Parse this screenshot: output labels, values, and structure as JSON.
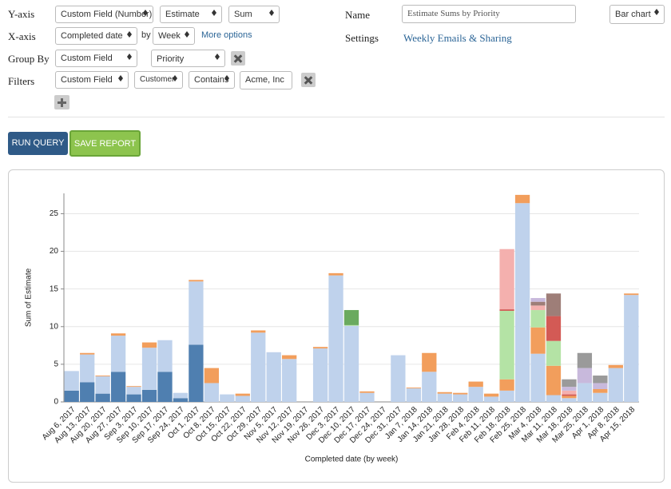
{
  "form": {
    "y_axis": {
      "label": "Y-axis",
      "field": "Custom Field (Number)",
      "measure": "Estimate",
      "aggregate": "Sum"
    },
    "x_axis": {
      "label": "X-axis",
      "field": "Completed date",
      "by": "by",
      "interval": "Week",
      "more": "More options"
    },
    "group_by": {
      "label": "Group By",
      "field": "Custom Field",
      "value": "Priority"
    },
    "filters": {
      "label": "Filters",
      "field": "Custom Field",
      "subfield": "Customer",
      "operator": "Contains",
      "value": "Acme, Inc"
    },
    "name": {
      "label": "Name",
      "value": "Estimate Sums by Priority"
    },
    "chart_type": "Bar chart",
    "settings": {
      "label": "Settings",
      "link": "Weekly Emails & Sharing"
    }
  },
  "buttons": {
    "run": "RUN QUERY",
    "save": "SAVE REPORT"
  },
  "chart_data": {
    "type": "stacked_bar",
    "xlabel": "Completed date (by week)",
    "ylabel": "Sum of Estimate",
    "categories": [
      "Aug 6, 2017",
      "Aug 13, 2017",
      "Aug 20, 2017",
      "Aug 27, 2017",
      "Sep 3, 2017",
      "Sep 10, 2017",
      "Sep 17, 2017",
      "Sep 24, 2017",
      "Oct 1, 2017",
      "Oct 8, 2017",
      "Oct 15, 2017",
      "Oct 22, 2017",
      "Oct 29, 2017",
      "Nov 5, 2017",
      "Nov 12, 2017",
      "Nov 19, 2017",
      "Nov 26, 2017",
      "Dec 3, 2017",
      "Dec 10, 2017",
      "Dec 17, 2017",
      "Dec 24, 2017",
      "Dec 31, 2017",
      "Jan 7, 2018",
      "Jan 14, 2018",
      "Jan 21, 2018",
      "Jan 28, 2018",
      "Feb 4, 2018",
      "Feb 11, 2018",
      "Feb 18, 2018",
      "Feb 25, 2018",
      "Mar 4, 2018",
      "Mar 11, 2018",
      "Mar 18, 2018",
      "Mar 25, 2018",
      "Apr 1, 2018",
      "Apr 8, 2018",
      "Apr 15, 2018"
    ],
    "series": [
      {
        "color": "#4f7fb0",
        "values": [
          1.5,
          2.6,
          1.1,
          4.0,
          1.0,
          1.6,
          4.0,
          0.5,
          7.6,
          0,
          0,
          0,
          0,
          0,
          0,
          0,
          0,
          0,
          0,
          0,
          0,
          0,
          0,
          0,
          0,
          0,
          0,
          0,
          0,
          0,
          0,
          0,
          0,
          0,
          0,
          0,
          0
        ]
      },
      {
        "color": "#bfd2ec",
        "values": [
          2.6,
          3.7,
          2.3,
          4.8,
          1.0,
          5.6,
          4.2,
          0.7,
          8.4,
          2.5,
          1.0,
          0.8,
          9.2,
          6.6,
          5.7,
          0,
          7.1,
          16.8,
          10.1,
          1.2,
          0,
          6.2,
          1.8,
          4.0,
          1.1,
          1.0,
          2.0,
          0.7,
          1.5,
          26.4,
          6.4,
          0.9,
          0.5,
          2.5,
          1.2,
          4.5,
          14.2
        ]
      },
      {
        "color": "#f29e5c",
        "values": [
          0,
          0.2,
          0.1,
          0.3,
          0.1,
          0.7,
          0,
          0,
          0.2,
          2.0,
          0,
          0.3,
          0.3,
          0,
          0.5,
          0,
          0.2,
          0.3,
          0,
          0.2,
          0,
          0,
          0.1,
          2.5,
          0.2,
          0.2,
          0.7,
          0.4,
          1.5,
          1.1,
          3.5,
          3.9,
          0.3,
          0,
          0.5,
          0.4,
          0.2
        ]
      },
      {
        "color": "#b4e3a5",
        "values": [
          0,
          0,
          0,
          0,
          0,
          0,
          0,
          0,
          0,
          0,
          0,
          0,
          0,
          0,
          0,
          0,
          0,
          0,
          0.1,
          0,
          0,
          0,
          0,
          0,
          0,
          0,
          0,
          0,
          9.1,
          0,
          2.3,
          3.3,
          0,
          0,
          0,
          0,
          0
        ]
      },
      {
        "color": "#6aaa5e",
        "values": [
          0,
          0,
          0,
          0,
          0,
          0,
          0,
          0,
          0,
          0,
          0,
          0,
          0,
          0,
          0,
          0,
          0,
          0,
          2.0,
          0,
          0,
          0,
          0,
          0,
          0,
          0,
          0,
          0,
          0,
          0,
          0,
          0,
          0,
          0,
          0,
          0,
          0
        ]
      },
      {
        "color": "#d35a55",
        "values": [
          0,
          0,
          0,
          0,
          0,
          0,
          0,
          0,
          0,
          0,
          0,
          0,
          0,
          0,
          0,
          0,
          0,
          0,
          0,
          0,
          0,
          0,
          0,
          0,
          0,
          0,
          0,
          0,
          0.2,
          0,
          0,
          3.3,
          0.2,
          0,
          0,
          0,
          0
        ]
      },
      {
        "color": "#f4b0ae",
        "values": [
          0,
          0,
          0,
          0,
          0,
          0,
          0,
          0,
          0,
          0,
          0,
          0,
          0,
          0,
          0,
          0,
          0,
          0,
          0,
          0,
          0,
          0,
          0,
          0,
          0,
          0,
          0,
          0,
          8.0,
          0,
          0.6,
          0,
          0.5,
          0,
          0,
          0,
          0
        ]
      },
      {
        "color": "#9e7e78",
        "values": [
          0,
          0,
          0,
          0,
          0,
          0,
          0,
          0,
          0,
          0,
          0,
          0,
          0,
          0,
          0,
          0,
          0,
          0,
          0,
          0,
          0,
          0,
          0,
          0,
          0,
          0,
          0,
          0,
          0,
          0,
          0.5,
          3.0,
          0,
          0,
          0,
          0,
          0
        ]
      },
      {
        "color": "#c8b9dc",
        "values": [
          0,
          0,
          0,
          0,
          0,
          0,
          0,
          0,
          0,
          0,
          0,
          0,
          0,
          0,
          0,
          0,
          0,
          0,
          0,
          0,
          0,
          0,
          0,
          0,
          0,
          0,
          0,
          0,
          0,
          0,
          0.5,
          0,
          0.5,
          2.0,
          0.8,
          0,
          0
        ]
      },
      {
        "color": "#9a9a9a",
        "values": [
          0,
          0,
          0,
          0,
          0,
          0,
          0,
          0,
          0,
          0,
          0,
          0,
          0,
          0,
          0,
          0,
          0,
          0,
          0,
          0,
          0,
          0,
          0,
          0,
          0,
          0,
          0,
          0,
          0,
          0,
          0,
          0,
          1.0,
          2.0,
          1.0,
          0,
          0
        ]
      }
    ],
    "ylim": [
      0,
      27.7
    ],
    "yticks": [
      0,
      5,
      10,
      15,
      20,
      25
    ],
    "grid": true
  }
}
